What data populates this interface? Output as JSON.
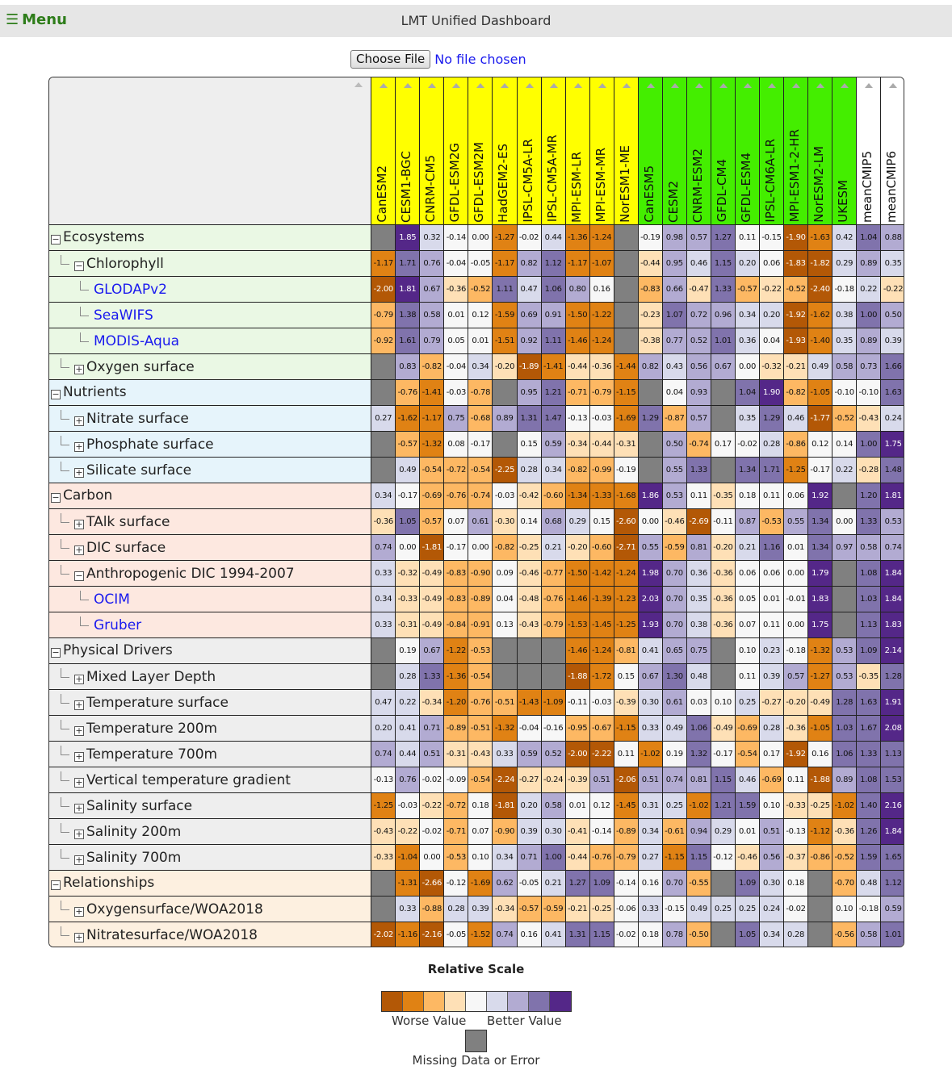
{
  "header": {
    "menu_icon": "hamburger-icon",
    "menu_label": "Menu",
    "title": "LMT Unified Dashboard"
  },
  "file": {
    "button_label": "Choose File",
    "status": "No file chosen"
  },
  "colors": {
    "menu": "#2e7d1a",
    "cmip5_header": "#ffff00",
    "cmip6_header": "#44ee00",
    "mean_header": "#ffffff",
    "missing": "#808080",
    "scale": [
      "#b35806",
      "#e08214",
      "#fdb863",
      "#fee0b6",
      "#f7f7f7",
      "#d8daeb",
      "#b2abd2",
      "#8073ac",
      "#542788"
    ],
    "section_bg": {
      "Ecosystems": "#eaf8e4",
      "Nutrients": "#e6f4fb",
      "Carbon": "#fde8e0",
      "Physical Drivers": "#eeeeee",
      "Relationships": "#fdf0e0"
    }
  },
  "models": [
    {
      "name": "CanESM2",
      "group": "cmip5"
    },
    {
      "name": "CESM1-BGC",
      "group": "cmip5"
    },
    {
      "name": "CNRM-CM5",
      "group": "cmip5"
    },
    {
      "name": "GFDL-ESM2G",
      "group": "cmip5"
    },
    {
      "name": "GFDL-ESM2M",
      "group": "cmip5"
    },
    {
      "name": "HadGEM2-ES",
      "group": "cmip5"
    },
    {
      "name": "IPSL-CM5A-LR",
      "group": "cmip5"
    },
    {
      "name": "IPSL-CM5A-MR",
      "group": "cmip5"
    },
    {
      "name": "MPI-ESM-LR",
      "group": "cmip5"
    },
    {
      "name": "MPI-ESM-MR",
      "group": "cmip5"
    },
    {
      "name": "NorESM1-ME",
      "group": "cmip5"
    },
    {
      "name": "CanESM5",
      "group": "cmip6"
    },
    {
      "name": "CESM2",
      "group": "cmip6"
    },
    {
      "name": "CNRM-ESM2",
      "group": "cmip6"
    },
    {
      "name": "GFDL-CM4",
      "group": "cmip6"
    },
    {
      "name": "GFDL-ESM4",
      "group": "cmip6"
    },
    {
      "name": "IPSL-CM6A-LR",
      "group": "cmip6"
    },
    {
      "name": "MPI-ESM1-2-HR",
      "group": "cmip6"
    },
    {
      "name": "NorESM2-LM",
      "group": "cmip6"
    },
    {
      "name": "UKESM",
      "group": "cmip6"
    },
    {
      "name": "meanCMIP5",
      "group": "mean"
    },
    {
      "name": "meanCMIP6",
      "group": "mean"
    }
  ],
  "rows": [
    {
      "label": "Ecosystems",
      "level": 0,
      "toggle": "minus",
      "section": "Ecosystems",
      "values": [
        null,
        1.85,
        0.32,
        -0.14,
        -0.0,
        -1.27,
        -0.02,
        0.44,
        -1.36,
        -1.24,
        null,
        -0.19,
        0.98,
        0.57,
        1.27,
        0.11,
        -0.15,
        -1.9,
        -1.63,
        0.42,
        1.04,
        0.88
      ]
    },
    {
      "label": "Chlorophyll",
      "level": 1,
      "toggle": "minus",
      "section": "Ecosystems",
      "values": [
        -1.17,
        1.71,
        0.76,
        -0.04,
        -0.05,
        -1.17,
        0.82,
        1.12,
        -1.17,
        -1.07,
        null,
        -0.44,
        0.95,
        0.46,
        1.15,
        0.2,
        0.06,
        -1.83,
        -1.82,
        0.29,
        0.89,
        0.35
      ]
    },
    {
      "label": "GLODAPv2",
      "level": 2,
      "toggle": "none",
      "link": true,
      "section": "Ecosystems",
      "values": [
        -2.0,
        1.81,
        0.67,
        -0.36,
        -0.52,
        1.11,
        0.47,
        1.06,
        0.8,
        0.16,
        null,
        -0.83,
        0.66,
        -0.47,
        1.33,
        -0.57,
        -0.22,
        -0.52,
        -2.4,
        -0.18,
        0.22,
        -0.22
      ]
    },
    {
      "label": "SeaWIFS",
      "level": 2,
      "toggle": "none",
      "link": true,
      "section": "Ecosystems",
      "values": [
        -0.79,
        1.38,
        0.58,
        0.01,
        0.12,
        -1.59,
        0.69,
        0.91,
        -1.5,
        -1.22,
        null,
        -0.23,
        1.07,
        0.72,
        0.96,
        0.34,
        0.2,
        -1.92,
        -1.62,
        0.38,
        1.0,
        0.5
      ]
    },
    {
      "label": "MODIS-Aqua",
      "level": 2,
      "toggle": "none",
      "link": true,
      "section": "Ecosystems",
      "values": [
        -0.92,
        1.61,
        0.79,
        0.05,
        0.01,
        -1.51,
        0.92,
        1.11,
        -1.46,
        -1.24,
        null,
        -0.38,
        0.77,
        0.52,
        1.01,
        0.36,
        0.04,
        -1.93,
        -1.4,
        0.35,
        0.89,
        0.39
      ]
    },
    {
      "label": "Oxygen surface",
      "level": 1,
      "toggle": "plus",
      "section": "Ecosystems",
      "values": [
        null,
        0.83,
        -0.82,
        -0.04,
        0.34,
        -0.2,
        -1.89,
        -1.41,
        -0.44,
        -0.36,
        -1.44,
        0.82,
        0.43,
        0.56,
        0.67,
        -0.0,
        -0.32,
        -0.21,
        0.49,
        0.58,
        0.73,
        1.66
      ]
    },
    {
      "label": "Nutrients",
      "level": 0,
      "toggle": "minus",
      "section": "Nutrients",
      "values": [
        null,
        -0.76,
        -1.41,
        -0.03,
        -0.78,
        null,
        0.95,
        1.21,
        -0.71,
        -0.79,
        -1.15,
        null,
        0.04,
        0.93,
        null,
        1.04,
        1.9,
        -0.82,
        -1.05,
        -0.1,
        -0.1,
        1.63
      ]
    },
    {
      "label": "Nitrate surface",
      "level": 1,
      "toggle": "plus",
      "section": "Nutrients",
      "values": [
        0.27,
        -1.62,
        -1.17,
        0.75,
        -0.68,
        0.89,
        1.31,
        1.47,
        -0.13,
        -0.03,
        -1.69,
        1.29,
        -0.87,
        0.57,
        null,
        0.35,
        1.29,
        0.46,
        -1.77,
        -0.52,
        -0.43,
        0.24
      ]
    },
    {
      "label": "Phosphate surface",
      "level": 1,
      "toggle": "plus",
      "section": "Nutrients",
      "values": [
        null,
        -0.57,
        -1.32,
        0.08,
        -0.17,
        null,
        0.15,
        0.59,
        -0.34,
        -0.44,
        -0.31,
        null,
        0.5,
        -0.74,
        0.17,
        -0.02,
        0.28,
        -0.86,
        0.12,
        0.14,
        1.0,
        1.75
      ]
    },
    {
      "label": "Silicate surface",
      "level": 1,
      "toggle": "plus",
      "section": "Nutrients",
      "values": [
        null,
        0.49,
        -0.54,
        -0.72,
        -0.54,
        -2.25,
        0.28,
        0.34,
        -0.82,
        -0.99,
        -0.19,
        null,
        0.55,
        1.33,
        null,
        1.34,
        1.71,
        -1.25,
        -0.17,
        0.22,
        -0.28,
        1.48
      ]
    },
    {
      "label": "Carbon",
      "level": 0,
      "toggle": "minus",
      "section": "Carbon",
      "values": [
        0.34,
        -0.17,
        -0.69,
        -0.76,
        -0.74,
        -0.03,
        -0.42,
        -0.6,
        -1.34,
        -1.33,
        -1.68,
        1.86,
        0.53,
        0.11,
        -0.35,
        0.18,
        0.11,
        0.06,
        1.92,
        null,
        1.2,
        1.81
      ]
    },
    {
      "label": "TAlk surface",
      "level": 1,
      "toggle": "plus",
      "section": "Carbon",
      "values": [
        -0.36,
        1.05,
        -0.57,
        0.07,
        0.61,
        -0.3,
        0.14,
        0.68,
        0.29,
        0.15,
        -2.6,
        0.0,
        -0.46,
        -2.69,
        -0.11,
        0.87,
        -0.53,
        0.55,
        1.34,
        0.0,
        1.33,
        0.53
      ]
    },
    {
      "label": "DIC surface",
      "level": 1,
      "toggle": "plus",
      "section": "Carbon",
      "values": [
        0.74,
        0.0,
        -1.81,
        -0.17,
        0.0,
        -0.82,
        -0.25,
        0.21,
        -0.2,
        -0.6,
        -2.71,
        0.55,
        -0.59,
        0.81,
        -0.2,
        0.21,
        1.16,
        0.01,
        1.34,
        0.97,
        0.58,
        0.74
      ]
    },
    {
      "label": "Anthropogenic DIC 1994-2007",
      "level": 1,
      "toggle": "minus",
      "section": "Carbon",
      "values": [
        0.33,
        -0.32,
        -0.49,
        -0.83,
        -0.9,
        0.09,
        -0.46,
        -0.77,
        -1.5,
        -1.42,
        -1.24,
        1.98,
        0.7,
        0.36,
        -0.36,
        0.06,
        0.06,
        -0.0,
        1.79,
        null,
        1.08,
        1.84
      ]
    },
    {
      "label": "OCIM",
      "level": 2,
      "toggle": "none",
      "link": true,
      "section": "Carbon",
      "values": [
        0.34,
        -0.33,
        -0.49,
        -0.83,
        -0.89,
        0.04,
        -0.48,
        -0.76,
        -1.46,
        -1.39,
        -1.23,
        2.03,
        0.7,
        0.35,
        -0.36,
        0.05,
        0.01,
        -0.01,
        1.83,
        null,
        1.03,
        1.84
      ]
    },
    {
      "label": "Gruber",
      "level": 2,
      "toggle": "none",
      "link": true,
      "section": "Carbon",
      "values": [
        0.33,
        -0.31,
        -0.49,
        -0.84,
        -0.91,
        0.13,
        -0.43,
        -0.79,
        -1.53,
        -1.45,
        -1.25,
        1.93,
        0.7,
        0.38,
        -0.36,
        0.07,
        0.11,
        -0.0,
        1.75,
        null,
        1.13,
        1.83
      ]
    },
    {
      "label": "Physical Drivers",
      "level": 0,
      "toggle": "minus",
      "section": "Physical Drivers",
      "values": [
        null,
        0.19,
        0.67,
        -1.22,
        -0.53,
        null,
        null,
        null,
        -1.46,
        -1.24,
        -0.81,
        0.41,
        0.65,
        0.75,
        null,
        0.1,
        0.23,
        -0.18,
        -1.32,
        0.53,
        1.09,
        2.14
      ]
    },
    {
      "label": "Mixed Layer Depth",
      "level": 1,
      "toggle": "plus",
      "section": "Physical Drivers",
      "values": [
        null,
        0.28,
        1.33,
        -1.36,
        -0.54,
        null,
        null,
        null,
        -1.88,
        -1.72,
        0.15,
        0.67,
        1.3,
        0.48,
        null,
        0.11,
        0.39,
        0.57,
        -1.27,
        0.53,
        -0.35,
        1.28
      ]
    },
    {
      "label": "Temperature surface",
      "level": 1,
      "toggle": "plus",
      "section": "Physical Drivers",
      "values": [
        0.47,
        0.22,
        -0.34,
        -1.2,
        -0.76,
        -0.51,
        -1.43,
        -1.09,
        -0.11,
        -0.03,
        -0.39,
        0.3,
        0.61,
        0.03,
        0.1,
        0.25,
        -0.27,
        -0.2,
        -0.49,
        1.28,
        1.63,
        1.91
      ]
    },
    {
      "label": "Temperature 200m",
      "level": 1,
      "toggle": "plus",
      "section": "Physical Drivers",
      "values": [
        0.2,
        0.41,
        0.71,
        -0.89,
        -0.51,
        -1.32,
        -0.04,
        -0.16,
        -0.95,
        -0.67,
        -1.15,
        0.33,
        0.49,
        1.06,
        -0.49,
        -0.69,
        0.28,
        -0.36,
        -1.05,
        1.03,
        1.67,
        2.08
      ]
    },
    {
      "label": "Temperature 700m",
      "level": 1,
      "toggle": "plus",
      "section": "Physical Drivers",
      "values": [
        0.74,
        0.44,
        0.51,
        -0.31,
        -0.43,
        0.33,
        0.59,
        0.52,
        -2.0,
        -2.22,
        0.11,
        -1.02,
        0.19,
        1.32,
        -0.17,
        -0.54,
        0.17,
        -1.92,
        0.16,
        1.06,
        1.33,
        1.13
      ]
    },
    {
      "label": "Vertical temperature gradient",
      "level": 1,
      "toggle": "plus",
      "section": "Physical Drivers",
      "values": [
        -0.13,
        0.76,
        -0.02,
        -0.09,
        -0.54,
        -2.24,
        -0.27,
        -0.24,
        -0.39,
        0.51,
        -2.06,
        0.51,
        0.74,
        0.81,
        1.15,
        0.46,
        -0.69,
        0.11,
        -1.88,
        0.89,
        1.08,
        1.53
      ]
    },
    {
      "label": "Salinity surface",
      "level": 1,
      "toggle": "plus",
      "section": "Physical Drivers",
      "values": [
        -1.25,
        -0.03,
        -0.22,
        -0.72,
        0.18,
        -1.81,
        0.2,
        0.58,
        0.01,
        0.12,
        -1.45,
        0.31,
        0.25,
        -1.02,
        1.21,
        1.59,
        0.1,
        -0.33,
        -0.25,
        -1.02,
        1.4,
        2.16
      ]
    },
    {
      "label": "Salinity 200m",
      "level": 1,
      "toggle": "plus",
      "section": "Physical Drivers",
      "values": [
        -0.43,
        -0.22,
        -0.02,
        -0.71,
        0.07,
        -0.9,
        0.39,
        0.3,
        -0.41,
        -0.14,
        -0.89,
        0.34,
        -0.61,
        0.94,
        0.29,
        0.01,
        0.51,
        -0.13,
        -1.12,
        -0.36,
        1.26,
        1.84
      ]
    },
    {
      "label": "Salinity 700m",
      "level": 1,
      "toggle": "plus",
      "section": "Physical Drivers",
      "values": [
        -0.33,
        -1.04,
        0.0,
        -0.53,
        0.1,
        0.34,
        0.71,
        1.0,
        -0.44,
        -0.76,
        -0.79,
        0.27,
        -1.15,
        1.15,
        -0.12,
        -0.46,
        0.56,
        -0.37,
        -0.86,
        -0.52,
        1.59,
        1.65
      ]
    },
    {
      "label": "Relationships",
      "level": 0,
      "toggle": "minus",
      "section": "Relationships",
      "values": [
        null,
        -1.31,
        -2.66,
        -0.12,
        -1.69,
        0.62,
        -0.05,
        0.21,
        1.27,
        1.09,
        -0.14,
        0.16,
        0.7,
        -0.55,
        null,
        1.09,
        0.3,
        0.18,
        null,
        -0.7,
        0.48,
        1.12
      ]
    },
    {
      "label": "Oxygensurface/WOA2018",
      "level": 1,
      "toggle": "plus",
      "section": "Relationships",
      "values": [
        null,
        0.33,
        -0.88,
        0.28,
        0.39,
        -0.34,
        -0.57,
        -0.59,
        -0.21,
        -0.25,
        -0.06,
        0.33,
        -0.15,
        0.49,
        0.25,
        0.25,
        0.24,
        -0.02,
        null,
        0.1,
        -0.18,
        0.59
      ]
    },
    {
      "label": "Nitratesurface/WOA2018",
      "level": 1,
      "toggle": "plus",
      "section": "Relationships",
      "values": [
        -2.02,
        -1.16,
        -2.16,
        -0.05,
        -1.52,
        0.74,
        0.16,
        0.41,
        1.31,
        1.15,
        -0.02,
        0.18,
        0.78,
        -0.5,
        null,
        1.05,
        0.34,
        0.28,
        null,
        -0.56,
        0.58,
        1.01
      ]
    }
  ],
  "legend": {
    "title": "Relative Scale",
    "worse_label": "Worse Value",
    "better_label": "Better Value",
    "missing_label": "Missing Data or Error"
  }
}
